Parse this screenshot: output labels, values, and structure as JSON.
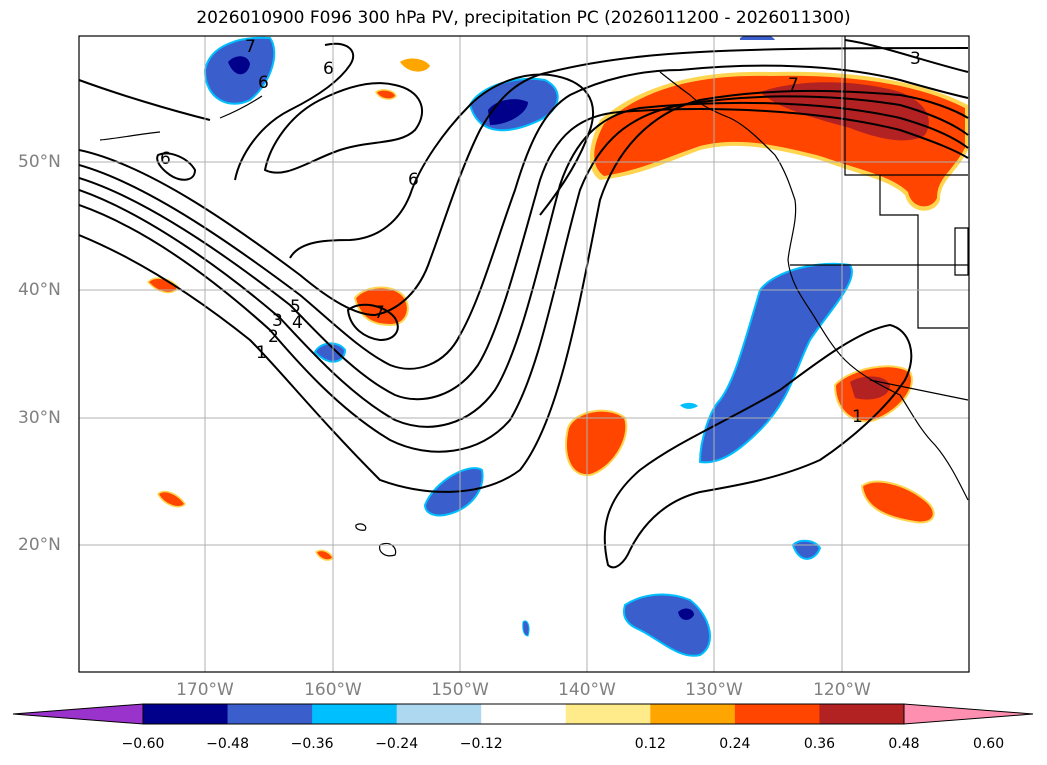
{
  "title": "2026010900 F096 300 hPa PV, precipitation PC (2026011200 - 2026011300)",
  "lat_labels": [
    "50°N",
    "40°N",
    "30°N",
    "20°N"
  ],
  "lon_labels": [
    "170°W",
    "160°W",
    "150°W",
    "140°W",
    "130°W",
    "120°W"
  ],
  "colorbar": {
    "ticks": [
      "−0.60",
      "−0.48",
      "−0.36",
      "−0.24",
      "−0.12",
      "0.12",
      "0.24",
      "0.36",
      "0.48",
      "0.60"
    ],
    "colors": [
      "#9933cc",
      "#00008b",
      "#3a5fcd",
      "#00bfff",
      "#add8f0",
      "#ffffff",
      "#ffeb8a",
      "#ffa500",
      "#ff4500",
      "#b22222",
      "#ff8fb1"
    ]
  },
  "contour_labels": [
    "1",
    "2",
    "3",
    "4",
    "5",
    "6",
    "6",
    "6",
    "7",
    "6",
    "7",
    "3",
    "1",
    "7"
  ]
}
